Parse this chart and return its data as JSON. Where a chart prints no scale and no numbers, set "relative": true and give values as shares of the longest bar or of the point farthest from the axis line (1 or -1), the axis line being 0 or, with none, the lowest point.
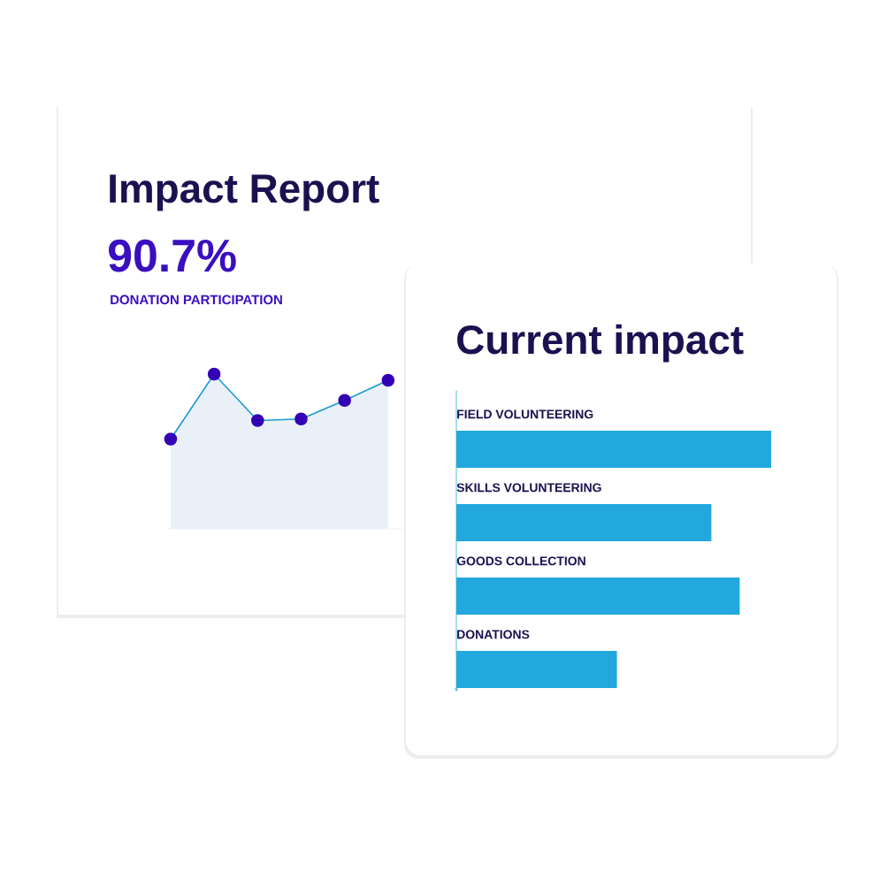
{
  "chart_data": [
    {
      "type": "area",
      "title": "Impact Report",
      "subtitle": "90.7%",
      "annotations": [
        "DONATION PARTICIPATION"
      ],
      "relative": true,
      "marker": "circle",
      "categories": [
        null,
        null,
        null,
        null,
        null,
        null
      ],
      "color": "#1a9ad6",
      "values": [
        0.58,
        1.0,
        0.7,
        0.71,
        0.83,
        0.96
      ]
    },
    {
      "type": "bar",
      "orientation": "horizontal",
      "title": "Current impact",
      "relative": true,
      "categories": [
        "FIELD VOLUNTEERING",
        "SKILLS VOLUNTEERING",
        "GOODS COLLECTION",
        "DONATIONS"
      ],
      "color": "#22a8dd",
      "values": [
        1.0,
        0.81,
        0.9,
        0.51
      ]
    }
  ]
}
